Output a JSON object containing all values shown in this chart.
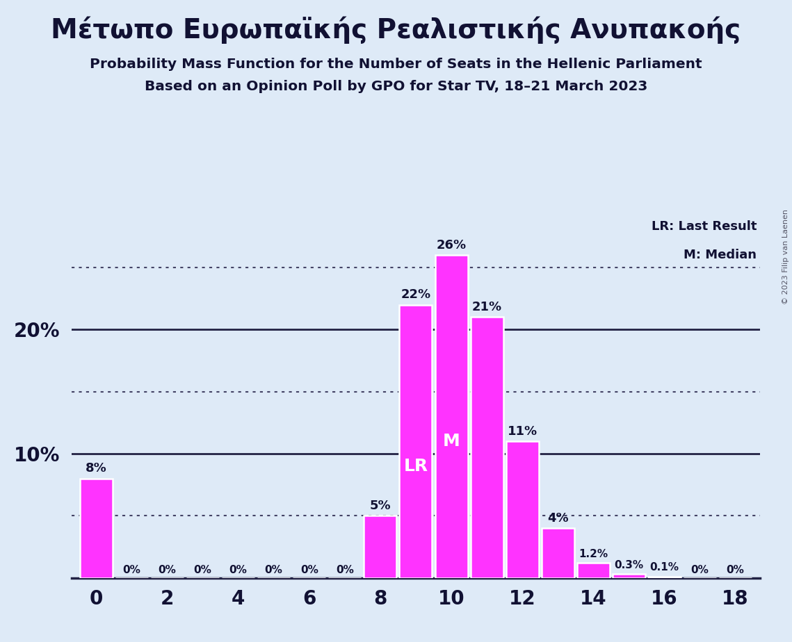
{
  "title_greek": "Μέτωπο Ευρωπαϊκής Ρεαλιστικής Ανυπακοής",
  "subtitle1": "Probability Mass Function for the Number of Seats in the Hellenic Parliament",
  "subtitle2": "Based on an Opinion Poll by GPO for Star TV, 18–21 March 2023",
  "copyright": "© 2023 Filip van Laenen",
  "seats": [
    0,
    1,
    2,
    3,
    4,
    5,
    6,
    7,
    8,
    9,
    10,
    11,
    12,
    13,
    14,
    15,
    16,
    17,
    18
  ],
  "probabilities": [
    8,
    0,
    0,
    0,
    0,
    0,
    0,
    0,
    5,
    22,
    26,
    21,
    11,
    4,
    1.2,
    0.3,
    0.1,
    0,
    0
  ],
  "bar_color": "#FF33FF",
  "background_color": "#DEEAF7",
  "text_color": "#111133",
  "lr_seat": 9,
  "median_seat": 10,
  "ymax": 30,
  "solid_line_values": [
    10,
    20
  ],
  "dotted_line_values": [
    5,
    15,
    25
  ],
  "legend_lr": "LR: Last Result",
  "legend_m": "M: Median"
}
